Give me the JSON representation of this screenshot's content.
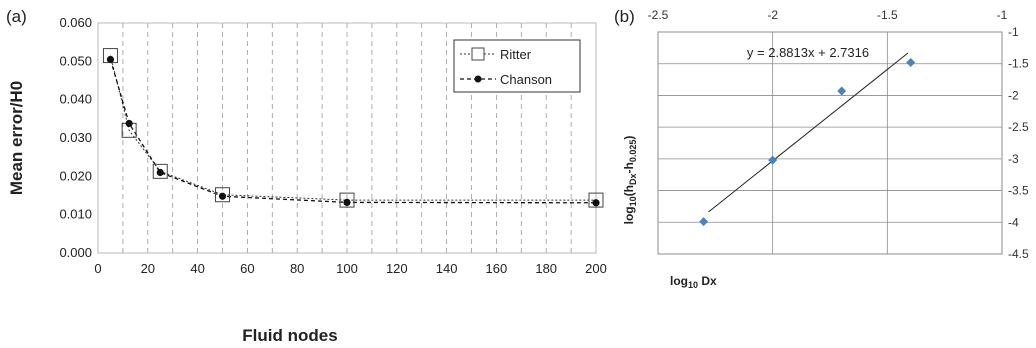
{
  "chart_data": [
    {
      "panel_label": "(a)",
      "type": "line",
      "xlabel": "Fluid nodes",
      "ylabel": "Mean error/H0",
      "xlim": [
        0,
        200
      ],
      "ylim": [
        0,
        0.06
      ],
      "xticks": [
        "0",
        "20",
        "40",
        "60",
        "80",
        "100",
        "120",
        "140",
        "160",
        "180",
        "200"
      ],
      "yticks": [
        "0.000",
        "0.010",
        "0.020",
        "0.030",
        "0.040",
        "0.050",
        "0.060"
      ],
      "grid": "vertical dashed",
      "legend_position": "top-right",
      "series": [
        {
          "name": "Ritter",
          "x": [
            5,
            12.5,
            25,
            50,
            100,
            200
          ],
          "y": [
            0.0515,
            0.032,
            0.0213,
            0.0152,
            0.0138,
            0.0138
          ],
          "color": "#333333"
        },
        {
          "name": "Chanson",
          "x": [
            5,
            12.5,
            25,
            50,
            100,
            200
          ],
          "y": [
            0.0505,
            0.0338,
            0.021,
            0.0148,
            0.0132,
            0.0131
          ],
          "color": "#111111"
        }
      ]
    },
    {
      "panel_label": "(b)",
      "type": "scatter",
      "xlabel_main": "log",
      "xlabel_sub": "10",
      "xlabel_tail": " Dx",
      "ylabel": "log10(hDx-h0.025)",
      "xlim": [
        -2.5,
        -1
      ],
      "ylim": [
        -4.5,
        -1
      ],
      "xticks": [
        "-2.5",
        "-2",
        "-1.5",
        "-1"
      ],
      "yticks": [
        "-1",
        "-1.5",
        "-2",
        "-2.5",
        "-3",
        "-3.5",
        "-4",
        "-4.5"
      ],
      "x": [
        -2.301,
        -2.0,
        -1.699,
        -1.398
      ],
      "y": [
        -3.99,
        -3.02,
        -1.93,
        -1.48
      ],
      "point_color": "#4f81bd",
      "trendline": {
        "slope": 2.8813,
        "intercept": 2.7316,
        "x_range": [
          -2.28,
          -1.41
        ]
      },
      "annotation": "y = 2.8813x + 2.7316"
    }
  ]
}
